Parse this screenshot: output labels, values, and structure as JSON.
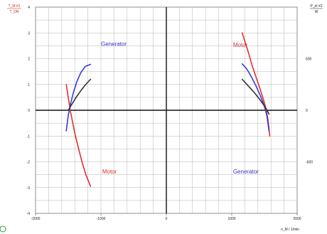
{
  "chart_data": {
    "type": "line",
    "y1_label": {
      "top": "T_M #1",
      "bottom": "T_DN"
    },
    "y2_label": {
      "top": "P_el #2",
      "bottom": "W"
    },
    "x_label": "n_M / 1/min",
    "xlim": [
      -2000,
      2000
    ],
    "ylim": [
      -4,
      4
    ],
    "y2_range": [
      -1200,
      1200
    ],
    "grid": true,
    "x_ticks": [
      -2000,
      -1000,
      0,
      1000,
      2000
    ],
    "x_tick_labels": [
      "-2000",
      "-1000",
      "0",
      "1000",
      "2000"
    ],
    "y_ticks": [
      -4,
      -3,
      -2,
      -1,
      0,
      1,
      2,
      3,
      4
    ],
    "y_tick_labels": [
      "-4",
      "-3",
      "-2",
      "-1",
      "0",
      "1",
      "2",
      "3",
      "4"
    ],
    "y2_ticks": [
      -600,
      0,
      600
    ],
    "y2_tick_labels": [
      "-600",
      "0",
      "600"
    ],
    "annotations": [
      {
        "text": "Generator",
        "x": -1000,
        "y": 2.5,
        "color": "#3333cc"
      },
      {
        "text": "Motor",
        "x": 1020,
        "y": 2.45,
        "color": "#dd3333"
      },
      {
        "text": "Motor",
        "x": -980,
        "y": -2.45,
        "color": "#dd3333"
      },
      {
        "text": "Generator",
        "x": 1020,
        "y": -2.45,
        "color": "#3333cc"
      }
    ],
    "series": [
      {
        "color": "#e03030",
        "points": [
          [
            -1530,
            1.0
          ],
          [
            -1500,
            0.5
          ],
          [
            -1470,
            0.0
          ],
          [
            -1430,
            -0.5
          ],
          [
            -1390,
            -1.0
          ],
          [
            -1340,
            -1.5
          ],
          [
            -1290,
            -2.0
          ],
          [
            -1230,
            -2.5
          ],
          [
            -1160,
            -2.95
          ]
        ]
      },
      {
        "color": "#3a3ae0",
        "points": [
          [
            -1530,
            -0.8
          ],
          [
            -1500,
            -0.2
          ],
          [
            -1460,
            0.3
          ],
          [
            -1420,
            0.7
          ],
          [
            -1370,
            1.1
          ],
          [
            -1310,
            1.45
          ],
          [
            -1240,
            1.7
          ],
          [
            -1160,
            1.78
          ]
        ]
      },
      {
        "color": "#333333",
        "points": [
          [
            -1500,
            0.0
          ],
          [
            -1440,
            0.25
          ],
          [
            -1380,
            0.5
          ],
          [
            -1310,
            0.75
          ],
          [
            -1240,
            0.98
          ],
          [
            -1160,
            1.2
          ]
        ]
      },
      {
        "color": "#e03030",
        "points": [
          [
            1160,
            3.0
          ],
          [
            1210,
            2.6
          ],
          [
            1260,
            2.2
          ],
          [
            1310,
            1.75
          ],
          [
            1370,
            1.3
          ],
          [
            1430,
            0.85
          ],
          [
            1480,
            0.45
          ],
          [
            1520,
            0.1
          ],
          [
            1550,
            -0.3
          ],
          [
            1570,
            -0.7
          ],
          [
            1580,
            -1.0
          ]
        ]
      },
      {
        "color": "#3a3ae0",
        "points": [
          [
            1160,
            1.8
          ],
          [
            1230,
            1.6
          ],
          [
            1300,
            1.3
          ],
          [
            1370,
            0.95
          ],
          [
            1440,
            0.55
          ],
          [
            1500,
            0.15
          ],
          [
            1540,
            -0.25
          ],
          [
            1570,
            -0.8
          ]
        ]
      },
      {
        "color": "#333333",
        "points": [
          [
            1160,
            1.2
          ],
          [
            1250,
            0.95
          ],
          [
            1340,
            0.7
          ],
          [
            1420,
            0.45
          ],
          [
            1490,
            0.2
          ],
          [
            1540,
            0.0
          ],
          [
            1570,
            -0.15
          ]
        ]
      }
    ]
  }
}
